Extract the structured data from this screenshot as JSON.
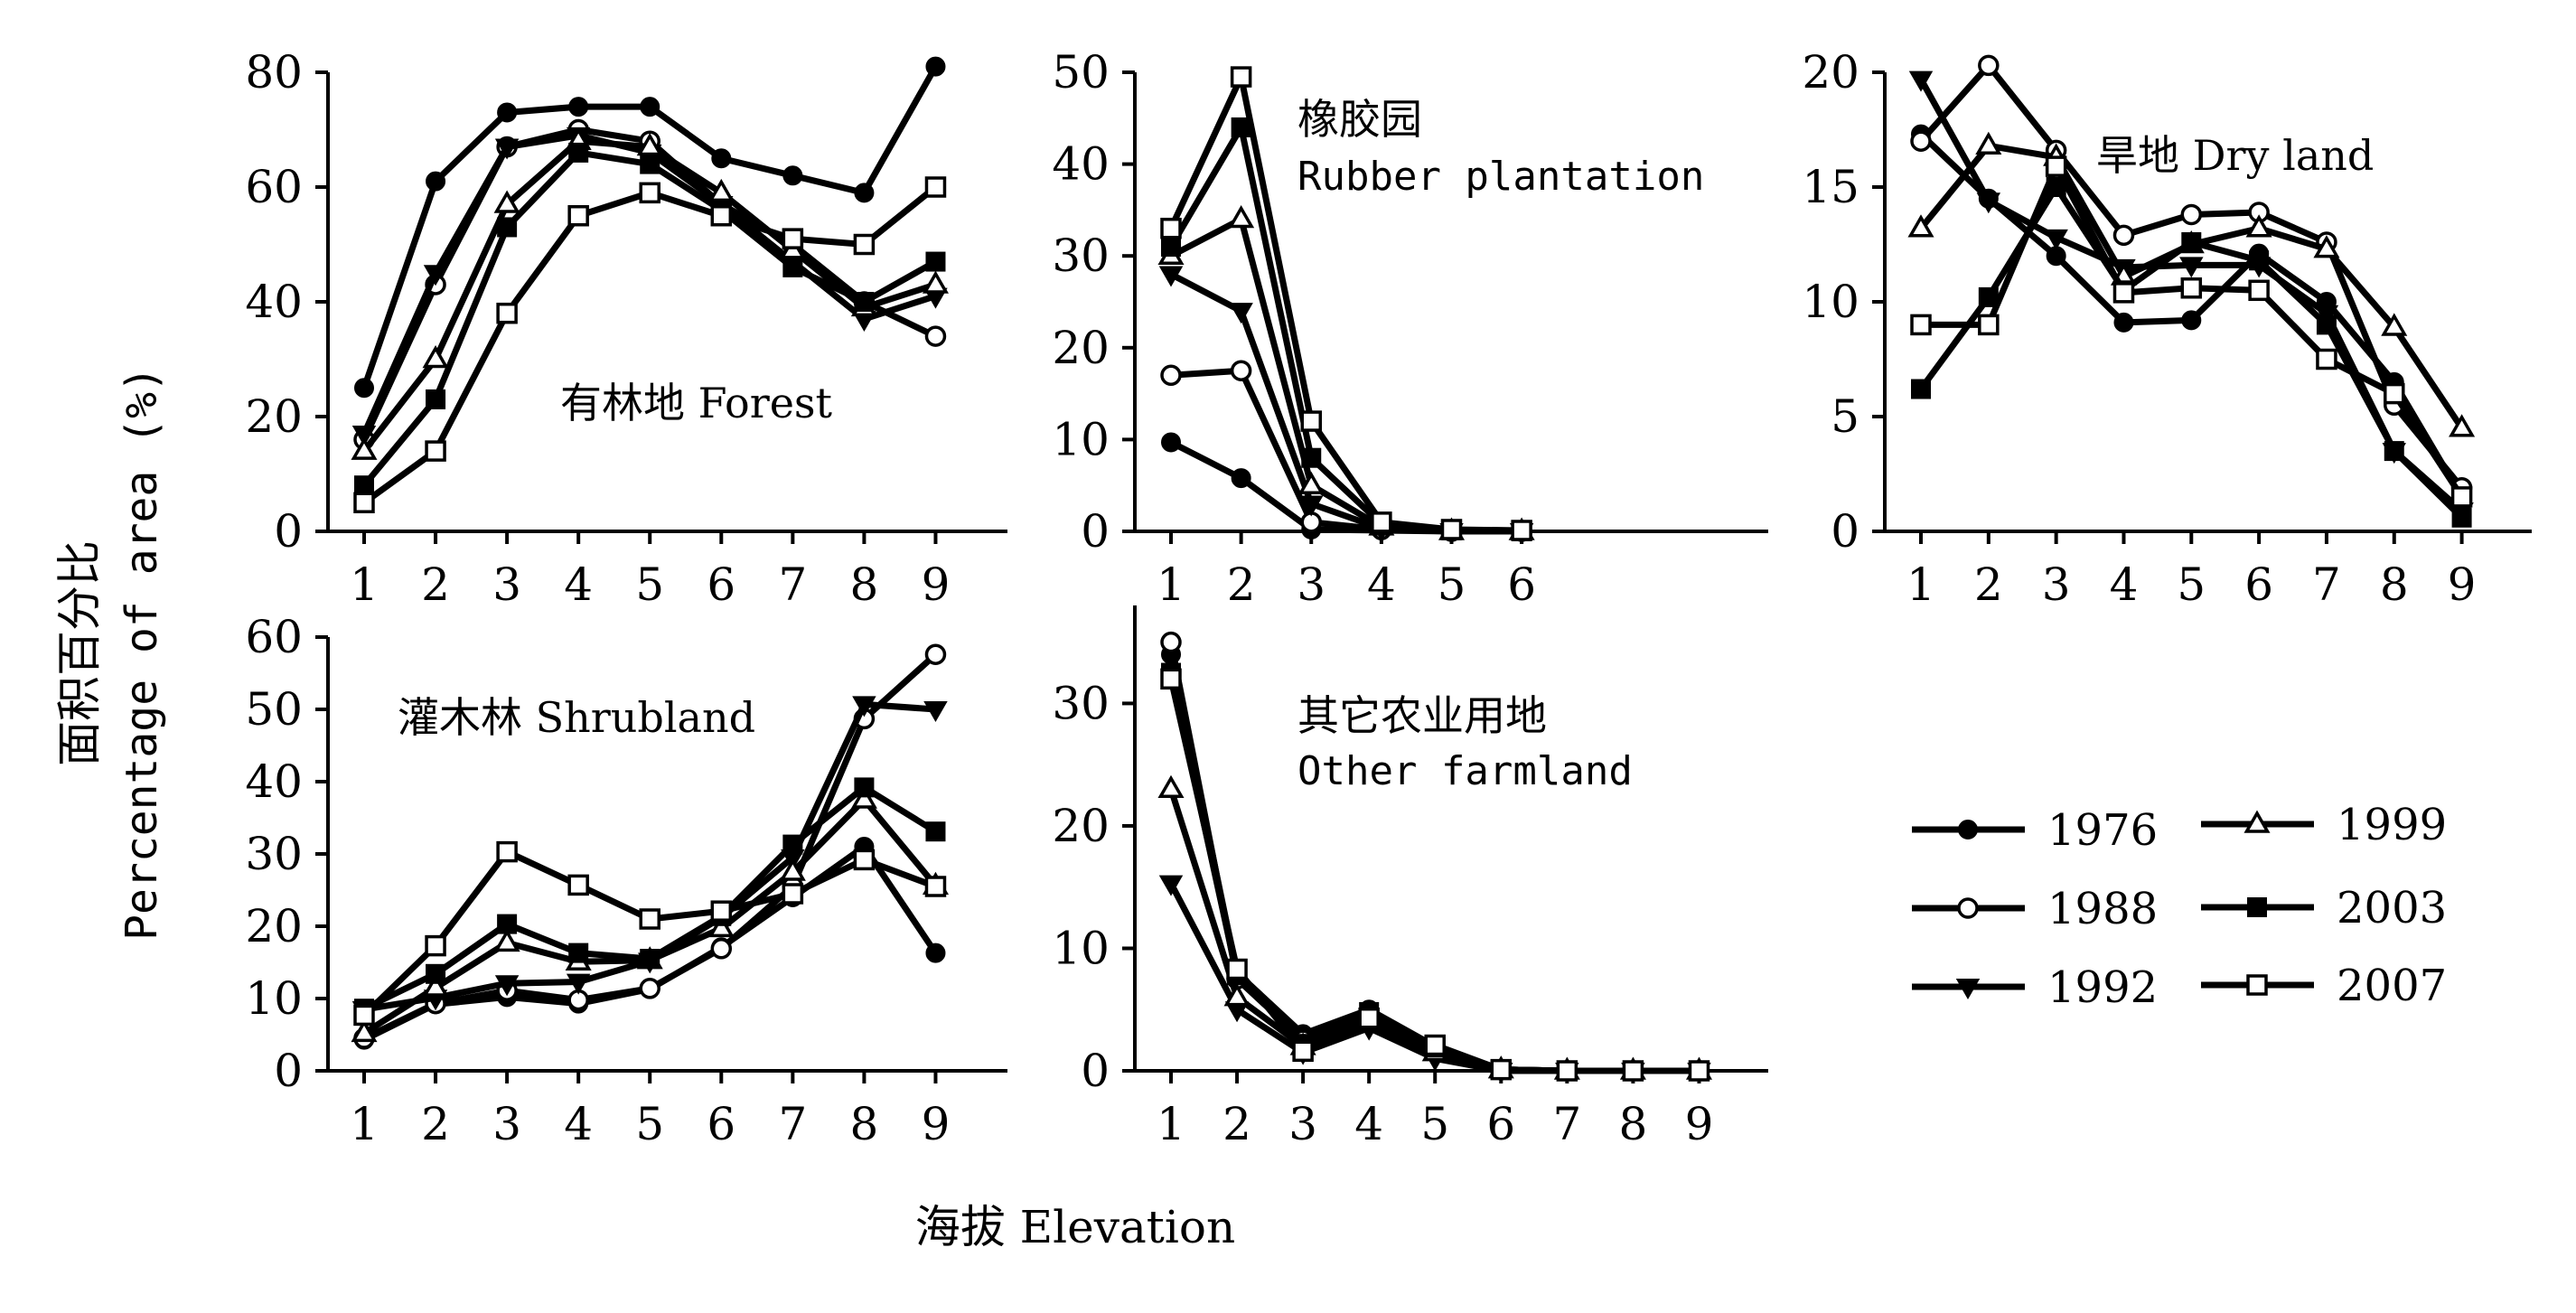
{
  "figure": {
    "ylabel_zh": "面积百分比",
    "ylabel_en": "Percentage of area (%)",
    "xlabel": "海拔 Elevation"
  },
  "legend": [
    "1976",
    "1999",
    "1988",
    "2003",
    "1992",
    "2007"
  ],
  "chart_data": [
    {
      "type": "line",
      "title": "有林地 Forest",
      "subtitle": "",
      "x": [
        1,
        2,
        3,
        4,
        5,
        6,
        7,
        8,
        9
      ],
      "ylim": [
        0,
        80
      ],
      "yticks": [
        0,
        20,
        40,
        60,
        80
      ],
      "series": [
        {
          "name": "1976",
          "values": [
            25,
            61,
            73,
            74,
            74,
            65,
            62,
            59,
            81
          ]
        },
        {
          "name": "1988",
          "values": [
            16,
            43,
            67,
            70,
            68,
            57,
            50,
            40,
            34
          ]
        },
        {
          "name": "1992",
          "values": [
            17,
            45,
            67,
            69,
            66,
            57,
            47,
            37,
            41
          ]
        },
        {
          "name": "1999",
          "values": [
            14,
            30,
            57,
            68,
            67,
            59,
            49,
            39,
            43
          ]
        },
        {
          "name": "2003",
          "values": [
            8,
            23,
            53,
            66,
            64,
            56,
            46,
            40,
            47
          ]
        },
        {
          "name": "2007",
          "values": [
            5,
            14,
            38,
            55,
            59,
            55,
            51,
            50,
            60
          ]
        }
      ]
    },
    {
      "type": "line",
      "title": "橡胶园",
      "subtitle": "Rubber plantation",
      "x": [
        1,
        2,
        3,
        4,
        5,
        6
      ],
      "ylim": [
        0,
        50
      ],
      "yticks": [
        0,
        10,
        20,
        30,
        40,
        50
      ],
      "series": [
        {
          "name": "1976",
          "values": [
            9.7,
            5.8,
            0.2,
            0.1,
            0,
            0
          ]
        },
        {
          "name": "1988",
          "values": [
            17,
            17.5,
            1,
            0.2,
            0,
            0
          ]
        },
        {
          "name": "1992",
          "values": [
            28,
            24,
            3,
            0.3,
            0,
            0
          ]
        },
        {
          "name": "1999",
          "values": [
            30,
            34,
            5,
            0.5,
            0,
            0
          ]
        },
        {
          "name": "2003",
          "values": [
            31,
            44,
            8,
            0.8,
            0.1,
            0
          ]
        },
        {
          "name": "2007",
          "values": [
            33,
            49.5,
            12,
            1,
            0.2,
            0.1
          ]
        }
      ]
    },
    {
      "type": "line",
      "title": "旱地 Dry land",
      "subtitle": "",
      "x": [
        1,
        2,
        3,
        4,
        5,
        6,
        7,
        8,
        9
      ],
      "ylim": [
        0,
        20
      ],
      "yticks": [
        0,
        5,
        10,
        15,
        20
      ],
      "series": [
        {
          "name": "1976",
          "values": [
            17.3,
            14.5,
            12,
            9.1,
            9.2,
            12.1,
            10,
            6.5,
            1.5
          ]
        },
        {
          "name": "1988",
          "values": [
            17,
            20.3,
            16.6,
            12.9,
            13.8,
            13.9,
            12.6,
            5.5,
            1.9
          ]
        },
        {
          "name": "1992",
          "values": [
            19.7,
            14.4,
            12.8,
            11.5,
            11.6,
            11.6,
            9.5,
            3.5,
            0.9
          ]
        },
        {
          "name": "1999",
          "values": [
            13.2,
            16.8,
            16.3,
            11.1,
            12.5,
            13.2,
            12.3,
            8.9,
            4.5
          ]
        },
        {
          "name": "2003",
          "values": [
            6.2,
            10.2,
            15,
            10.5,
            12.6,
            11.8,
            9,
            3.5,
            0.6
          ]
        },
        {
          "name": "2007",
          "values": [
            9,
            9,
            15.9,
            10.4,
            10.6,
            10.5,
            7.5,
            6,
            1.5
          ]
        }
      ]
    },
    {
      "type": "line",
      "title": "灌木林 Shrubland",
      "subtitle": "",
      "x": [
        1,
        2,
        3,
        4,
        5,
        6,
        7,
        8,
        9
      ],
      "ylim": [
        0,
        60
      ],
      "yticks": [
        0,
        10,
        20,
        30,
        40,
        50,
        60
      ],
      "series": [
        {
          "name": "1976",
          "values": [
            4.3,
            9.2,
            10.2,
            9.3,
            11.3,
            17.1,
            24,
            31,
            16.3
          ]
        },
        {
          "name": "1988",
          "values": [
            4.5,
            9.3,
            11.1,
            9.8,
            11.4,
            16.9,
            25.5,
            48.7,
            57.6
          ]
        },
        {
          "name": "1992",
          "values": [
            8.5,
            10.1,
            12.1,
            12.3,
            15.2,
            21.2,
            29.5,
            50.7,
            50
          ]
        },
        {
          "name": "1999",
          "values": [
            5.2,
            11.5,
            17.7,
            15.1,
            15.3,
            19.7,
            27.5,
            37.5,
            25.6
          ]
        },
        {
          "name": "2003",
          "values": [
            8.6,
            13.4,
            20.3,
            16.3,
            15.5,
            21.4,
            31.3,
            39.2,
            33.1
          ]
        },
        {
          "name": "2007",
          "values": [
            7.7,
            17.3,
            30.3,
            25.7,
            21,
            22.1,
            24.5,
            29.2,
            25.5
          ]
        }
      ]
    },
    {
      "type": "line",
      "title": "其它农业用地",
      "subtitle": "Other farmland",
      "x": [
        1,
        2,
        3,
        4,
        5,
        6,
        7,
        8,
        9
      ],
      "ylim": [
        0,
        38
      ],
      "yticks": [
        0,
        10,
        20,
        30
      ],
      "series": [
        {
          "name": "1976",
          "values": [
            34,
            8,
            3,
            5,
            2,
            0.1,
            0,
            0,
            0
          ]
        },
        {
          "name": "1988",
          "values": [
            35,
            7.5,
            2.5,
            4.5,
            1.8,
            0.1,
            0,
            0,
            0
          ]
        },
        {
          "name": "1992",
          "values": [
            15.3,
            5,
            1.5,
            3.5,
            1,
            0,
            0,
            0,
            0
          ]
        },
        {
          "name": "1999",
          "values": [
            23,
            6,
            2,
            4,
            1.5,
            0.1,
            0,
            0,
            0
          ]
        },
        {
          "name": "2003",
          "values": [
            32.5,
            7.8,
            2.2,
            4.8,
            1.9,
            0.1,
            0,
            0,
            0
          ]
        },
        {
          "name": "2007",
          "values": [
            32,
            8.3,
            1.6,
            4.3,
            2.1,
            0.1,
            0,
            0,
            0
          ]
        }
      ]
    }
  ]
}
